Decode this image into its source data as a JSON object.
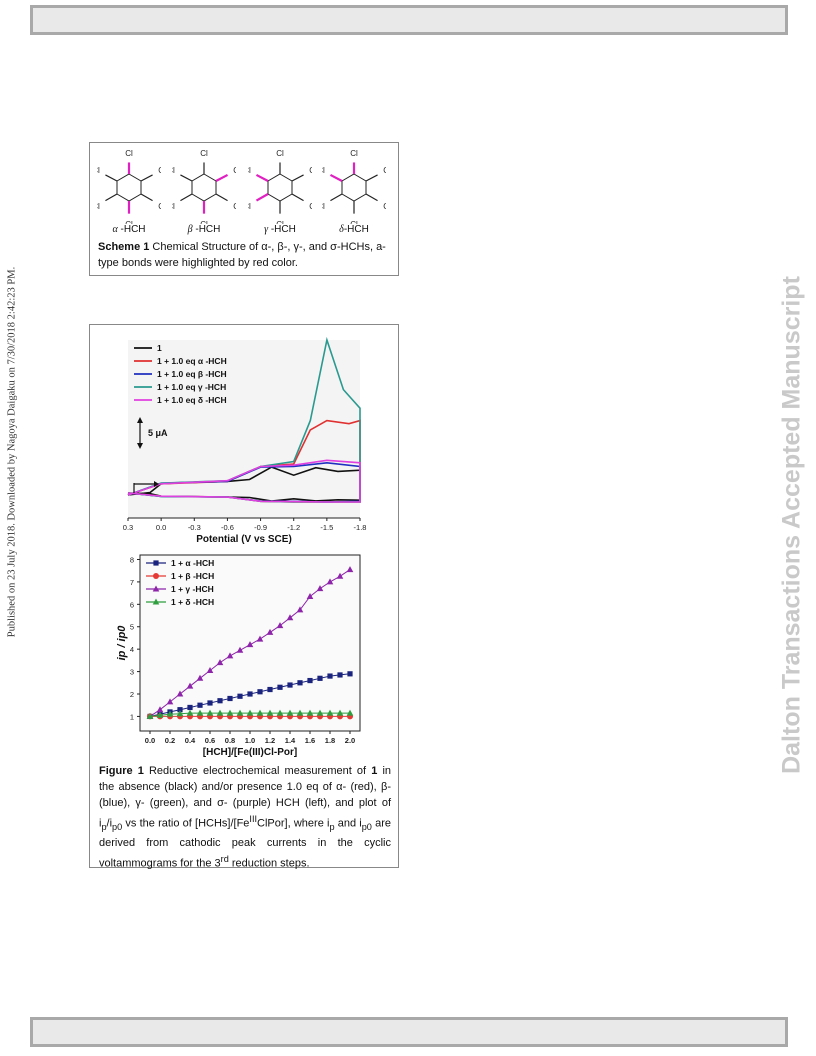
{
  "side_left_text": "Published on 23 July 2018. Downloaded by Nagoya Daigaku on 7/30/2018 2:42:23 PM.",
  "side_right_text": "Dalton Transactions Accepted Manuscript",
  "scheme": {
    "structures": [
      {
        "greek": "α",
        "suffix": " -HCH"
      },
      {
        "greek": "β",
        "suffix": " -HCH"
      },
      {
        "greek": "γ",
        "suffix": " -HCH"
      },
      {
        "greek": "δ",
        "suffix": "-HCH"
      }
    ],
    "atom_label": "Cl",
    "caption_label": "Scheme 1",
    "caption_text": " Chemical Structure of α-, β-, γ-, and σ-HCHs, a-type bonds were highlighted by red color."
  },
  "figure": {
    "caption_label": "Figure 1",
    "caption_part1": " Reductive electrochemical measurement of ",
    "caption_bold1": "1",
    "caption_part2": " in the absence (black) and/or presence 1.0 eq of α- (red), β- (blue), γ- (green), and σ- (purple) HCH (left), and plot of i",
    "caption_sub1": "p",
    "caption_part3": "/i",
    "caption_sub2": "p0",
    "caption_part4": " vs the ratio of [HCHs]/[Fe",
    "caption_sup1": "III",
    "caption_part5": "ClPor], where i",
    "caption_sub3": "p",
    "caption_part6": " and i",
    "caption_sub4": "p0",
    "caption_part7": " are derived from cathodic peak currents in the cyclic voltammograms for the 3",
    "caption_sup2": "rd",
    "caption_part8": " reduction steps."
  },
  "chart_data": [
    {
      "type": "line",
      "xlabel": "Potential (V vs SCE)",
      "ylabel": "",
      "xticks": [
        "0.3",
        "0.0",
        "-0.3",
        "-0.6",
        "-0.9",
        "-1.2",
        "-1.5",
        "-1.8"
      ],
      "xlim": [
        0.3,
        -1.8
      ],
      "scale_bar_label": "5 μA",
      "legend_position": "top-left",
      "series": [
        {
          "name": "1",
          "color": "#111111",
          "x": [
            0.3,
            0.1,
            0.0,
            -0.2,
            -0.6,
            -0.8,
            -1.0,
            -1.2,
            -1.4,
            -1.6,
            -1.8
          ],
          "y": [
            0.0,
            0.4,
            1.8,
            2.0,
            2.2,
            2.5,
            4.5,
            3.2,
            4.4,
            3.8,
            4.0
          ]
        },
        {
          "name": "1 + 1.0 eq α -HCH",
          "color": "#e03030",
          "x": [
            0.3,
            0.0,
            -0.6,
            -0.9,
            -1.2,
            -1.35,
            -1.5,
            -1.7,
            -1.8
          ],
          "y": [
            0.0,
            1.8,
            2.2,
            4.6,
            5.0,
            10.5,
            12.0,
            11.5,
            12.0
          ]
        },
        {
          "name": "1 + 1.0 eq β -HCH",
          "color": "#2030c0",
          "x": [
            0.3,
            0.0,
            -0.6,
            -0.9,
            -1.2,
            -1.5,
            -1.8
          ],
          "y": [
            0.0,
            1.9,
            2.2,
            4.5,
            4.6,
            5.2,
            4.6
          ]
        },
        {
          "name": "1 + 1.0 eq γ -HCH",
          "color": "#2a9a90",
          "x": [
            0.3,
            0.0,
            -0.6,
            -0.9,
            -1.2,
            -1.35,
            -1.5,
            -1.65,
            -1.8
          ],
          "y": [
            0.0,
            1.9,
            2.3,
            4.6,
            5.4,
            12.0,
            25.0,
            17.0,
            14.0
          ]
        },
        {
          "name": "1 + 1.0 eq δ -HCH",
          "color": "#e040e0",
          "x": [
            0.3,
            0.0,
            -0.6,
            -0.9,
            -1.2,
            -1.5,
            -1.8
          ],
          "y": [
            0.0,
            1.8,
            2.3,
            4.6,
            4.8,
            5.6,
            5.2
          ]
        }
      ]
    },
    {
      "type": "scatter",
      "xlabel": "[HCH]/[Fe(III)Cl-Por]",
      "ylabel": "ip / ip0",
      "xlim": [
        -0.1,
        2.1
      ],
      "ylim": [
        0.35,
        8.2
      ],
      "xticks": [
        "0.0",
        "0.2",
        "0.4",
        "0.6",
        "0.8",
        "1.0",
        "1.2",
        "1.4",
        "1.6",
        "1.8",
        "2.0"
      ],
      "yticks": [
        "1",
        "2",
        "3",
        "4",
        "5",
        "6",
        "7",
        "8"
      ],
      "legend_position": "top-left",
      "x": [
        0.0,
        0.1,
        0.2,
        0.3,
        0.4,
        0.5,
        0.6,
        0.7,
        0.8,
        0.9,
        1.0,
        1.1,
        1.2,
        1.3,
        1.4,
        1.5,
        1.6,
        1.7,
        1.8,
        1.9,
        2.0
      ],
      "series": [
        {
          "name": "1 + α -HCH",
          "color": "#1a237e",
          "marker": "square",
          "values": [
            1.0,
            1.1,
            1.2,
            1.3,
            1.4,
            1.5,
            1.6,
            1.7,
            1.8,
            1.9,
            2.0,
            2.1,
            2.2,
            2.3,
            2.4,
            2.5,
            2.6,
            2.7,
            2.8,
            2.85,
            2.9
          ]
        },
        {
          "name": "1 + β -HCH",
          "color": "#e53935",
          "marker": "circle",
          "values": [
            1.0,
            1.0,
            1.0,
            1.0,
            1.0,
            1.0,
            1.0,
            1.0,
            1.0,
            1.0,
            1.0,
            1.0,
            1.0,
            1.0,
            1.0,
            1.0,
            1.0,
            1.0,
            1.0,
            1.0,
            1.0
          ]
        },
        {
          "name": "1 + γ -HCH",
          "color": "#8e24aa",
          "marker": "triangle",
          "values": [
            1.0,
            1.3,
            1.65,
            2.0,
            2.35,
            2.7,
            3.05,
            3.4,
            3.7,
            3.95,
            4.2,
            4.45,
            4.75,
            5.05,
            5.4,
            5.75,
            6.35,
            6.7,
            7.0,
            7.25,
            7.55
          ]
        },
        {
          "name": "1 + δ -HCH",
          "color": "#2e9e3e",
          "marker": "triangle",
          "values": [
            1.0,
            1.05,
            1.1,
            1.12,
            1.15,
            1.15,
            1.15,
            1.15,
            1.15,
            1.15,
            1.15,
            1.15,
            1.15,
            1.15,
            1.15,
            1.15,
            1.15,
            1.15,
            1.15,
            1.15,
            1.15
          ]
        }
      ]
    }
  ]
}
